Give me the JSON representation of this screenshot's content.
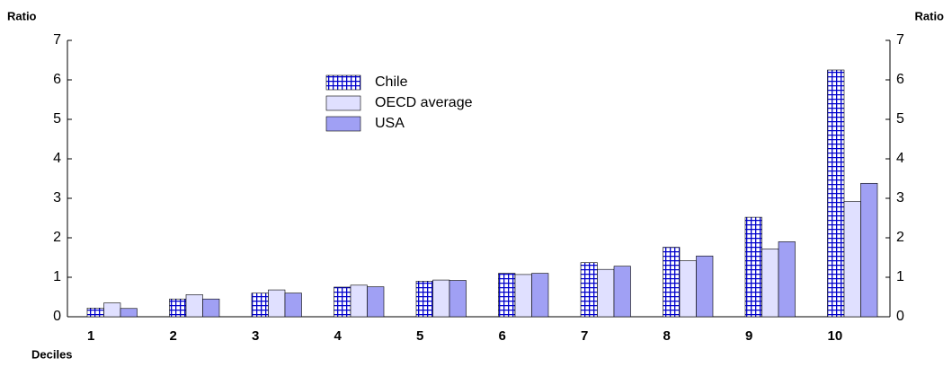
{
  "chart_data": {
    "type": "bar",
    "y_label": "Ratio",
    "y2_label": "Ratio",
    "x_label": "Deciles",
    "categories": [
      "1",
      "2",
      "3",
      "4",
      "5",
      "6",
      "7",
      "8",
      "9",
      "10"
    ],
    "series": [
      {
        "name": "Chile",
        "color": "#0000cc",
        "pattern": "grid",
        "values": [
          0.22,
          0.45,
          0.6,
          0.75,
          0.9,
          1.1,
          1.37,
          1.76,
          2.52,
          6.25
        ]
      },
      {
        "name": "OECD average",
        "color": "#e0e0ff",
        "values": [
          0.35,
          0.56,
          0.68,
          0.8,
          0.93,
          1.07,
          1.2,
          1.42,
          1.72,
          2.92
        ]
      },
      {
        "name": "USA",
        "color": "#a0a0f4",
        "values": [
          0.21,
          0.45,
          0.6,
          0.76,
          0.92,
          1.1,
          1.28,
          1.54,
          1.9,
          3.38
        ]
      }
    ],
    "ylim": [
      0,
      7
    ],
    "yticks": [
      0,
      1,
      2,
      3,
      4,
      5,
      6,
      7
    ],
    "y2lim": [
      0,
      7
    ],
    "y2ticks": [
      0,
      1,
      2,
      3,
      4,
      5,
      6,
      7
    ],
    "grid": false,
    "legend": "top-center"
  }
}
